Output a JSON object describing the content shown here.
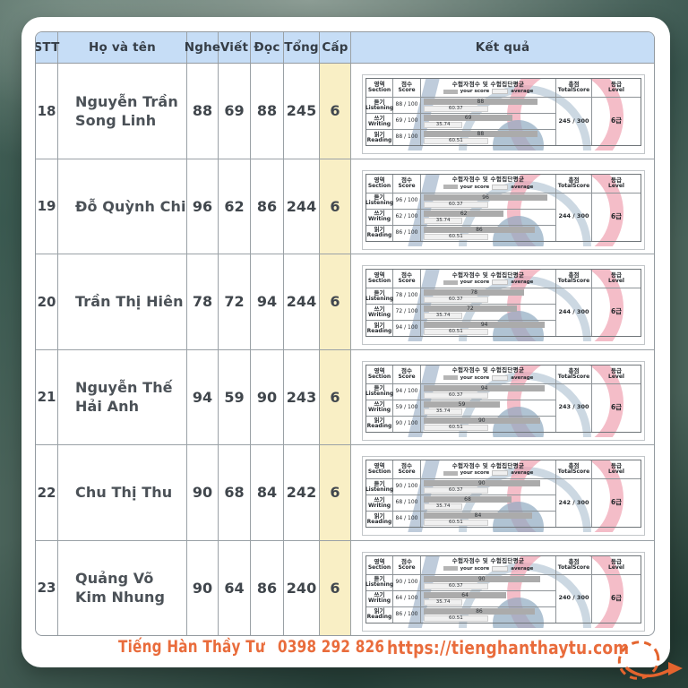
{
  "table": {
    "headers": [
      "STT",
      "Họ và tên",
      "Nghe",
      "Viết",
      "Đọc",
      "Tổng",
      "Cấp",
      "Kết quả"
    ],
    "students": [
      {
        "stt": "18",
        "name_lines": [
          "Nguyễn Trần",
          "Song Linh"
        ],
        "nghe": 88,
        "viet": 69,
        "doc": 88,
        "tong": 245,
        "cap": "6",
        "total_label": "245 / 300",
        "level_label": "6급"
      },
      {
        "stt": "19",
        "name_lines": [
          "Đỗ Quỳnh Chi"
        ],
        "nghe": 96,
        "viet": 62,
        "doc": 86,
        "tong": 244,
        "cap": "6",
        "total_label": "244 / 300",
        "level_label": "6급"
      },
      {
        "stt": "20",
        "name_lines": [
          "Trần Thị Hiên"
        ],
        "nghe": 78,
        "viet": 72,
        "doc": 94,
        "tong": 244,
        "cap": "6",
        "total_label": "244 / 300",
        "level_label": "6급"
      },
      {
        "stt": "21",
        "name_lines": [
          "Nguyễn Thế Hải Anh"
        ],
        "nghe": 94,
        "viet": 59,
        "doc": 90,
        "tong": 243,
        "cap": "6",
        "total_label": "243 / 300",
        "level_label": "6급"
      },
      {
        "stt": "22",
        "name_lines": [
          "Chu Thị Thu"
        ],
        "nghe": 90,
        "viet": 68,
        "doc": 84,
        "tong": 242,
        "cap": "6",
        "total_label": "242 / 300",
        "level_label": "6급"
      },
      {
        "stt": "23",
        "name_lines": [
          "Quảng Võ",
          "Kim Nhung"
        ],
        "nghe": 90,
        "viet": 64,
        "doc": 86,
        "tong": 240,
        "cap": "6",
        "total_label": "240 / 300",
        "level_label": "6급"
      }
    ]
  },
  "scorecard": {
    "col_section_ko": "영역",
    "col_section_en": "Section",
    "col_score_ko": "점수",
    "col_score_en": "Score",
    "chart_title_ko": "수험자점수 및 수험집단평균",
    "legend_your_score": "your score",
    "legend_average": "average",
    "col_total_ko": "총점",
    "col_total_en": "TotalScore",
    "col_level_ko": "등급",
    "col_level_en": "Level",
    "score_denominator": " / 100",
    "sections": [
      {
        "ko": "듣기",
        "en": "Listening",
        "avg": 60.37,
        "avg_label": "60.37"
      },
      {
        "ko": "쓰기",
        "en": "Writing",
        "avg": 35.74,
        "avg_label": "35.74"
      },
      {
        "ko": "읽기",
        "en": "Reading",
        "avg": 60.51,
        "avg_label": "60.51"
      }
    ]
  },
  "footer": {
    "brand": "Tiếng Hàn Thầy Tư",
    "phone": "0398 292 826",
    "website": "https://tienghanthaytu.com"
  },
  "colors": {
    "accent_orange": "#e96c3c",
    "header_blue": "#c6ddf6",
    "level_yellow": "#f9efc5",
    "watermark_red": "#f0a1b1",
    "watermark_blue": "#8ea9c1",
    "background_teal": "#4a635a"
  }
}
